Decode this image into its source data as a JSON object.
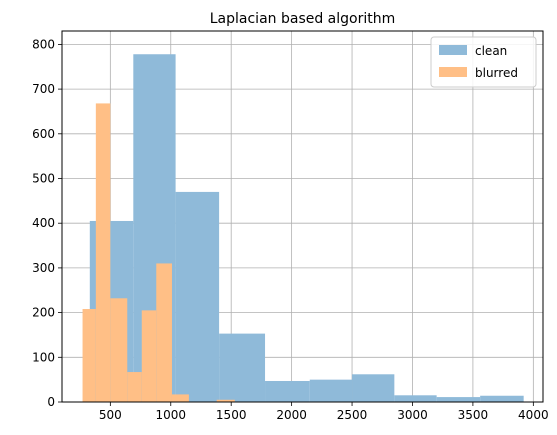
{
  "chart_data": {
    "type": "bar",
    "title": "Laplacian based algorithm",
    "xlabel": "",
    "ylabel": "",
    "xlim": [
      100,
      4080
    ],
    "ylim": [
      0,
      830
    ],
    "grid": true,
    "legend_position": "top-right",
    "x_ticks": [
      500,
      1000,
      1500,
      2000,
      2500,
      3000,
      3500,
      4000
    ],
    "y_ticks": [
      0,
      100,
      200,
      300,
      400,
      500,
      600,
      700,
      800
    ],
    "series": [
      {
        "name": "clean",
        "color": "#8fbad9",
        "bins": [
          {
            "x0": 330,
            "x1": 690,
            "count": 405
          },
          {
            "x0": 690,
            "x1": 1040,
            "count": 778
          },
          {
            "x0": 1040,
            "x1": 1400,
            "count": 470
          },
          {
            "x0": 1400,
            "x1": 1780,
            "count": 153
          },
          {
            "x0": 1780,
            "x1": 2150,
            "count": 47
          },
          {
            "x0": 2150,
            "x1": 2500,
            "count": 50
          },
          {
            "x0": 2500,
            "x1": 2850,
            "count": 62
          },
          {
            "x0": 2850,
            "x1": 3200,
            "count": 15
          },
          {
            "x0": 3200,
            "x1": 3560,
            "count": 11
          },
          {
            "x0": 3560,
            "x1": 3920,
            "count": 14
          }
        ]
      },
      {
        "name": "blurred",
        "color": "#ffbf86",
        "bins": [
          {
            "x0": 270,
            "x1": 380,
            "count": 208
          },
          {
            "x0": 380,
            "x1": 500,
            "count": 668
          },
          {
            "x0": 500,
            "x1": 640,
            "count": 232
          },
          {
            "x0": 640,
            "x1": 760,
            "count": 67
          },
          {
            "x0": 760,
            "x1": 880,
            "count": 205
          },
          {
            "x0": 880,
            "x1": 1010,
            "count": 310
          },
          {
            "x0": 1010,
            "x1": 1150,
            "count": 17
          },
          {
            "x0": 1150,
            "x1": 1380,
            "count": 0
          },
          {
            "x0": 1380,
            "x1": 1530,
            "count": 5
          }
        ]
      }
    ]
  }
}
